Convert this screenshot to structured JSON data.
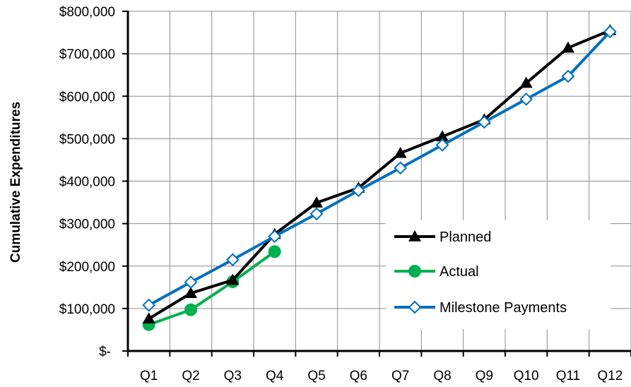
{
  "chart_data": {
    "type": "line",
    "title": "",
    "xlabel": "",
    "ylabel": "Cumulative Expenditures",
    "categories": [
      "Q1",
      "Q2",
      "Q3",
      "Q4",
      "Q5",
      "Q6",
      "Q7",
      "Q8",
      "Q9",
      "Q10",
      "Q11",
      "Q12"
    ],
    "ylim": [
      0,
      800000
    ],
    "yticks": [
      0,
      100000,
      200000,
      300000,
      400000,
      500000,
      600000,
      700000,
      800000
    ],
    "ytick_labels": [
      "$-",
      "$100,000",
      "$200,000",
      "$300,000",
      "$400,000",
      "$500,000",
      "$600,000",
      "$700,000",
      "$800,000"
    ],
    "grid": true,
    "legend_position": "bottom-right",
    "series": [
      {
        "name": "Planned",
        "color": "#000000",
        "marker": "triangle",
        "values": [
          76000,
          136000,
          167000,
          275000,
          349000,
          384000,
          466000,
          505000,
          545000,
          631000,
          714000,
          755000
        ]
      },
      {
        "name": "Actual",
        "color": "#00B050",
        "marker": "circle",
        "values": [
          62000,
          97000,
          163000,
          234000,
          null,
          null,
          null,
          null,
          null,
          null,
          null,
          null
        ]
      },
      {
        "name": "Milestone Payments",
        "color": "#0070C0",
        "marker": "diamond-open",
        "values": [
          108000,
          162000,
          215000,
          270000,
          323000,
          378000,
          431000,
          485000,
          539000,
          593000,
          647000,
          752000
        ]
      }
    ]
  }
}
